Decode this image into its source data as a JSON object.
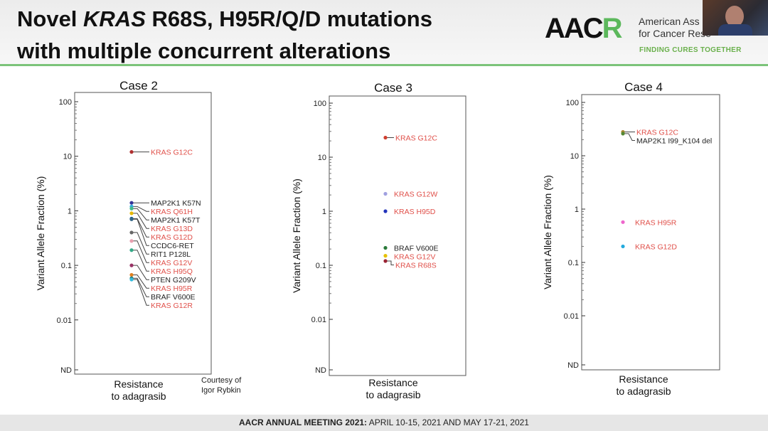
{
  "slide": {
    "title_line1_pre": "Novel ",
    "title_line1_italic": "KRAS",
    "title_line1_post": " R68S, H95R/Q/D mutations",
    "title_line2": "with multiple concurrent alterations",
    "logo": {
      "text_a": "AAC",
      "text_b": "R",
      "org_line1": "American Ass",
      "org_line2": "for Cancer Rese",
      "tagline": "FINDING CURES TOGETHER"
    },
    "credit_line1": "Courtesy of",
    "credit_line2": "Igor Rybkin",
    "footer_bold": "AACR ANNUAL MEETING 2021:",
    "footer_rest": " APRIL 10-15, 2021 AND MAY 17-21, 2021",
    "colors": {
      "accent_green": "#7cc47a",
      "kras_label": "#e0504a",
      "other_label": "#222222"
    }
  },
  "chart_data": [
    {
      "type": "scatter",
      "title": "Case 2",
      "ylabel": "Variant Allele Fraction (%)",
      "xlabel": "Resistance to adagrasib",
      "yscale": "log",
      "ylim": [
        0.01,
        100
      ],
      "yticks": [
        "100",
        "10",
        "1",
        "0.1",
        "0.01",
        "ND"
      ],
      "points": [
        {
          "label": "KRAS G12C",
          "value": 12,
          "color": "#b03030"
        },
        {
          "label": "MAP2K1 K57N",
          "value": 1.4,
          "color": "#333399"
        },
        {
          "label": "KRAS Q61H",
          "value": 1.2,
          "color": "#33aadd"
        },
        {
          "label": "MAP2K1 K57T",
          "value": 1.1,
          "color": "#44bb88"
        },
        {
          "label": "KRAS G13D",
          "value": 0.9,
          "color": "#e6b800"
        },
        {
          "label": "KRAS G12D",
          "value": 0.72,
          "color": "#1a5a8a"
        },
        {
          "label": "CCDC6-RET",
          "value": 0.7,
          "color": "#336688"
        },
        {
          "label": "RIT1 P128L",
          "value": 0.4,
          "color": "#666666"
        },
        {
          "label": "KRAS G12V",
          "value": 0.28,
          "color": "#e8a0b0"
        },
        {
          "label": "KRAS H95Q",
          "value": 0.19,
          "color": "#33aa88"
        },
        {
          "label": "PTEN G209V",
          "value": 0.1,
          "color": "#993366"
        },
        {
          "label": "KRAS H95R",
          "value": 0.067,
          "color": "#e08020"
        },
        {
          "label": "BRAF V600E",
          "value": 0.058,
          "color": "#2a7a7a"
        },
        {
          "label": "KRAS G12R",
          "value": 0.055,
          "color": "#33bbdd"
        }
      ]
    },
    {
      "type": "scatter",
      "title": "Case 3",
      "ylabel": "Variant Allele Fraction (%)",
      "xlabel": "Resistance to adagrasib",
      "yscale": "log",
      "ylim": [
        0.01,
        100
      ],
      "yticks": [
        "100",
        "10",
        "1",
        "0.1",
        "0.01",
        "ND"
      ],
      "points": [
        {
          "label": "KRAS G12C",
          "value": 23,
          "color": "#d04030"
        },
        {
          "label": "KRAS G12W",
          "value": 2.1,
          "color": "#a0a0e0"
        },
        {
          "label": "KRAS H95D",
          "value": 1.0,
          "color": "#2233bb"
        },
        {
          "label": "BRAF V600E",
          "value": 0.21,
          "color": "#2a7a3a"
        },
        {
          "label": "KRAS G12V",
          "value": 0.15,
          "color": "#e6c000"
        },
        {
          "label": "KRAS R68S",
          "value": 0.12,
          "color": "#992233"
        }
      ]
    },
    {
      "type": "scatter",
      "title": "Case 4",
      "ylabel": "Variant Allele Fraction (%)",
      "xlabel": "Resistance to adagrasib",
      "yscale": "log",
      "ylim": [
        0.01,
        100
      ],
      "yticks": [
        "100",
        "10",
        "1",
        "0.1",
        "0.01",
        "ND"
      ],
      "points": [
        {
          "label": "KRAS G12C",
          "value": 28,
          "color": "#aa8833"
        },
        {
          "label": "MAP2K1 I99_K104 del",
          "value": 26,
          "color": "#558833"
        },
        {
          "label": "KRAS H95R",
          "value": 0.57,
          "color": "#ee66cc"
        },
        {
          "label": "KRAS G12D",
          "value": 0.2,
          "color": "#22aadd"
        }
      ]
    }
  ]
}
